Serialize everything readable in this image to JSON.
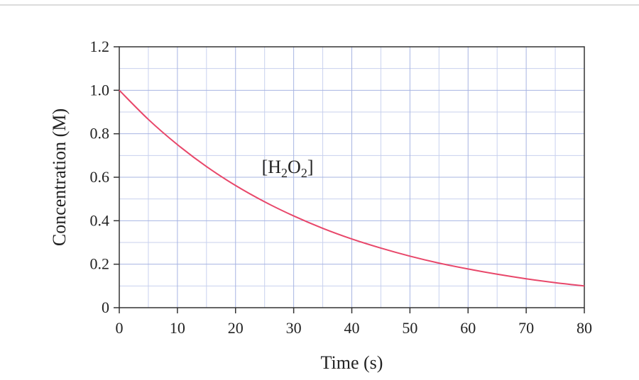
{
  "chart_data": {
    "type": "line",
    "title": "",
    "xlabel": "Time (s)",
    "ylabel": "Concentration (M)",
    "xlim": [
      0,
      80
    ],
    "ylim": [
      0,
      1.2
    ],
    "x_ticks": [
      "0",
      "10",
      "20",
      "30",
      "40",
      "50",
      "60",
      "70",
      "80"
    ],
    "y_ticks": [
      "0",
      "0.2",
      "0.4",
      "0.6",
      "0.8",
      "1.0",
      "1.2"
    ],
    "grid": true,
    "series": [
      {
        "color": "#e8476a",
        "x": [
          0,
          5,
          10,
          15,
          20,
          25,
          30,
          35,
          40,
          45,
          50,
          55,
          60,
          65,
          70,
          75,
          80
        ],
        "y": [
          1.0,
          0.866,
          0.75,
          0.649,
          0.562,
          0.487,
          0.422,
          0.365,
          0.316,
          0.274,
          0.237,
          0.205,
          0.178,
          0.154,
          0.133,
          0.115,
          0.1
        ]
      }
    ],
    "annotations": [
      {
        "label": "[H2O2]",
        "main": "[H",
        "sub1": "2",
        "mid": "O",
        "sub2": "2",
        "end": "]",
        "x": 24.5,
        "y": 0.62
      }
    ]
  }
}
